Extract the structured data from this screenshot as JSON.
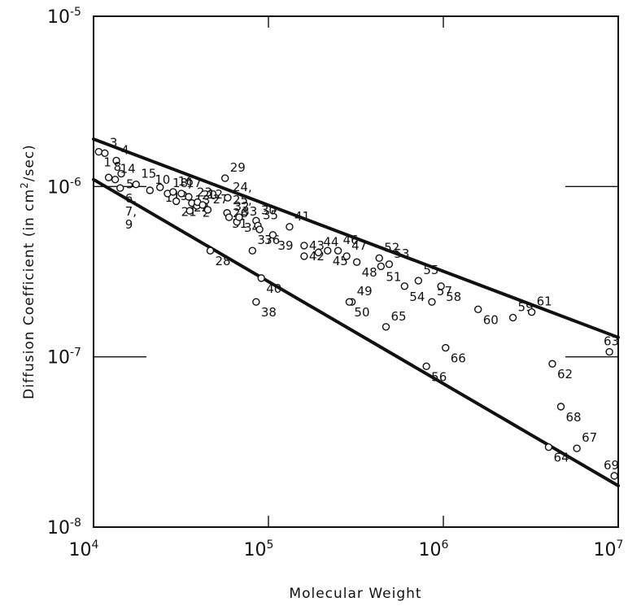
{
  "chart_data": {
    "type": "scatter",
    "title": "",
    "xlabel": "Molecular Weight",
    "ylabel_prefix": "Diffusion Coefficient (in cm",
    "ylabel_exp": "2",
    "ylabel_suffix": "/sec)",
    "x_scale": "log",
    "y_scale": "log",
    "xlim": [
      10000,
      10000000
    ],
    "ylim": [
      1e-08,
      1e-05
    ],
    "grid": false,
    "x_ticks": [
      {
        "base": "10",
        "exp": "4"
      },
      {
        "base": "10",
        "exp": "5"
      },
      {
        "base": "10",
        "exp": "6"
      },
      {
        "base": "10",
        "exp": "7"
      }
    ],
    "y_ticks": [
      {
        "base": "10",
        "exp": "-5"
      },
      {
        "base": "10",
        "exp": "-6"
      },
      {
        "base": "10",
        "exp": "-7"
      },
      {
        "base": "10",
        "exp": "-8"
      }
    ],
    "bound_lines": [
      {
        "name": "upper bound",
        "x": [
          10000,
          10000000
        ],
        "y": [
          1.9e-06,
          1.3e-07
        ]
      },
      {
        "name": "lower bound",
        "x": [
          10000,
          10000000
        ],
        "y": [
          1.1e-06,
          1.75e-08
        ]
      }
    ],
    "points": [
      {
        "label": "1",
        "x": 10700,
        "y": 1.6e-06
      },
      {
        "label": "3",
        "x": 11600,
        "y": 1.57e-06
      },
      {
        "label": "4",
        "x": 13500,
        "y": 1.42e-06
      },
      {
        "label": "5",
        "x": 14400,
        "y": 1.19e-06
      },
      {
        "label": "8",
        "x": 12200,
        "y": 1.13e-06
      },
      {
        "label": "14",
        "x": 13300,
        "y": 1.1e-06
      },
      {
        "label": "6, 7, 9",
        "x": 14200,
        "y": 9.8e-07
      },
      {
        "label": "15",
        "x": 17500,
        "y": 1.03e-06
      },
      {
        "label": "10",
        "x": 21000,
        "y": 9.5e-07
      },
      {
        "label": "11",
        "x": 24000,
        "y": 9.9e-07
      },
      {
        "label": "18, 19",
        "x": 26500,
        "y": 9.1e-07
      },
      {
        "label": "16",
        "x": 28500,
        "y": 9.3e-07
      },
      {
        "label": "21",
        "x": 29700,
        "y": 8.2e-07
      },
      {
        "label": "17",
        "x": 31800,
        "y": 9.1e-07
      },
      {
        "label": "13",
        "x": 35500,
        "y": 7.2e-07
      },
      {
        "label": "22",
        "x": 35000,
        "y": 8.7e-07
      },
      {
        "label": "23",
        "x": 36500,
        "y": 8e-07
      },
      {
        "label": "20",
        "x": 39000,
        "y": 7.7e-07
      },
      {
        "label": "2",
        "x": 39300,
        "y": 8.1e-07
      },
      {
        "label": "12",
        "x": 42000,
        "y": 7.8e-07
      },
      {
        "label": "27",
        "x": 45000,
        "y": 7.3e-07
      },
      {
        "label": "28",
        "x": 46500,
        "y": 4.2e-07
      },
      {
        "label": "29",
        "x": 56500,
        "y": 1.12e-06
      },
      {
        "label": "24, 25, 26",
        "x": 58500,
        "y": 8.6e-07
      },
      {
        "label": "31",
        "x": 58000,
        "y": 7e-07
      },
      {
        "label": "32",
        "x": 59500,
        "y": 6.6e-07
      },
      {
        "label": "33",
        "x": 66000,
        "y": 6.2e-07
      },
      {
        "label": "34",
        "x": 68000,
        "y": 6.6e-07
      },
      {
        "label": "30",
        "x": 85000,
        "y": 6.3e-07
      },
      {
        "label": "35",
        "x": 87000,
        "y": 5.9e-07
      },
      {
        "label": "36",
        "x": 89000,
        "y": 5.6e-07
      },
      {
        "label": "37",
        "x": 81000,
        "y": 4.2e-07
      },
      {
        "label": "38",
        "x": 85000,
        "y": 2.1e-07
      },
      {
        "label": "39",
        "x": 106000,
        "y": 5.2e-07
      },
      {
        "label": "40",
        "x": 91000,
        "y": 2.9e-07
      },
      {
        "label": "41",
        "x": 132000,
        "y": 5.8e-07
      },
      {
        "label": "42",
        "x": 160000,
        "y": 4.5e-07
      },
      {
        "label": "43",
        "x": 160000,
        "y": 3.9e-07
      },
      {
        "label": "44",
        "x": 193000,
        "y": 4.1e-07
      },
      {
        "label": "45",
        "x": 218000,
        "y": 4.2e-07
      },
      {
        "label": "46",
        "x": 250000,
        "y": 4.2e-07
      },
      {
        "label": "47",
        "x": 280000,
        "y": 3.9e-07
      },
      {
        "label": "48",
        "x": 320000,
        "y": 3.6e-07
      },
      {
        "label": "49",
        "x": 300000,
        "y": 2.1e-07
      },
      {
        "label": "50",
        "x": 290000,
        "y": 2.1e-07
      },
      {
        "label": "51",
        "x": 440000,
        "y": 3.4e-07
      },
      {
        "label": "52",
        "x": 430000,
        "y": 3.8e-07
      },
      {
        "label": "53",
        "x": 490000,
        "y": 3.5e-07
      },
      {
        "label": "54",
        "x": 600000,
        "y": 2.6e-07
      },
      {
        "label": "55",
        "x": 720000,
        "y": 2.8e-07
      },
      {
        "label": "56",
        "x": 800000,
        "y": 8.8e-08
      },
      {
        "label": "57",
        "x": 860000,
        "y": 2.1e-07
      },
      {
        "label": "58",
        "x": 970000,
        "y": 2.6e-07
      },
      {
        "label": "59",
        "x": 2500000,
        "y": 1.7e-07
      },
      {
        "label": "60",
        "x": 1580000,
        "y": 1.9e-07
      },
      {
        "label": "61",
        "x": 3200000,
        "y": 1.83e-07
      },
      {
        "label": "62",
        "x": 4200000,
        "y": 9.1e-08
      },
      {
        "label": "63",
        "x": 8900000,
        "y": 1.07e-07
      },
      {
        "label": "64",
        "x": 4000000,
        "y": 2.95e-08
      },
      {
        "label": "65",
        "x": 470000,
        "y": 1.5e-07
      },
      {
        "label": "66",
        "x": 1030000,
        "y": 1.13e-07
      },
      {
        "label": "67",
        "x": 5800000,
        "y": 2.9e-08
      },
      {
        "label": "68",
        "x": 4700000,
        "y": 5.1e-08
      },
      {
        "label": "69",
        "x": 9500000,
        "y": 2e-08
      }
    ]
  }
}
